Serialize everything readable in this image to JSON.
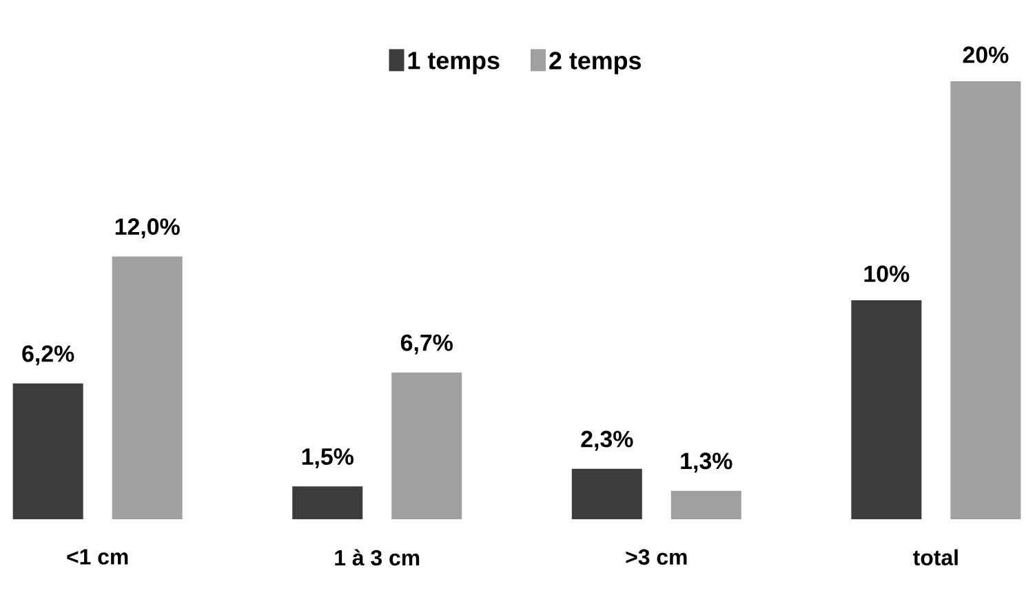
{
  "chart_data": {
    "type": "bar",
    "categories": [
      "<1 cm",
      "1 à 3 cm",
      ">3 cm",
      "total"
    ],
    "series": [
      {
        "name": "1 temps",
        "color": "#3d3d3d",
        "values": [
          6.2,
          1.5,
          2.3,
          10
        ],
        "value_labels": [
          "6,2%",
          "1,5%",
          "2,3%",
          "10%"
        ]
      },
      {
        "name": "2 temps",
        "color": "#a0a0a0",
        "values": [
          12.0,
          6.7,
          1.3,
          20
        ],
        "value_labels": [
          "12,0%",
          "6,7%",
          "1,3%",
          "20%"
        ]
      }
    ],
    "legend": "top"
  }
}
